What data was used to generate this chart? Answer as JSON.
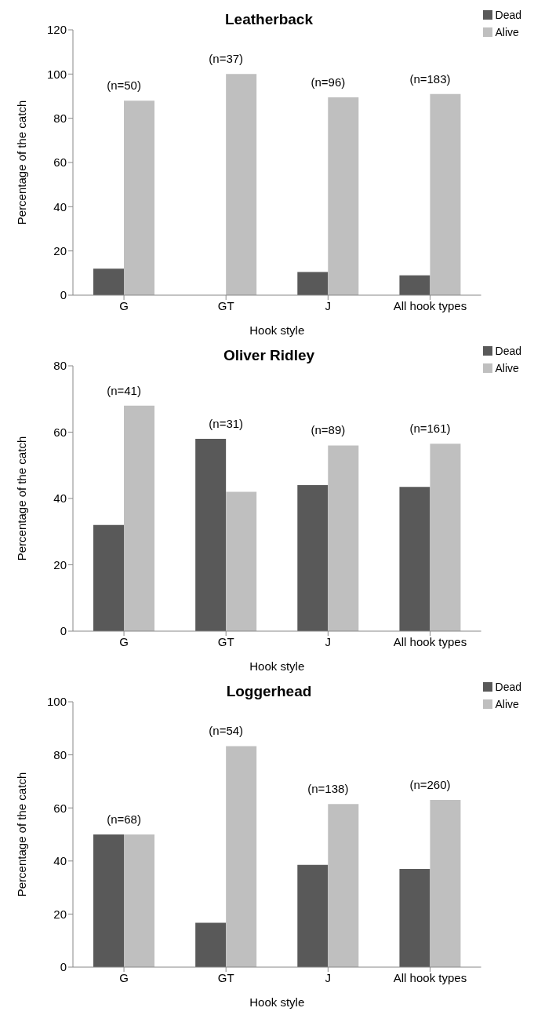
{
  "chart_data": [
    {
      "type": "bar",
      "title": "Leatherback",
      "xlabel": "Hook style",
      "ylabel": "Percentage of the catch",
      "categories": [
        "G",
        "GT",
        "J",
        "All hook types"
      ],
      "series": [
        {
          "name": "Dead",
          "color": "#595959",
          "values": [
            12,
            0,
            10.5,
            9
          ]
        },
        {
          "name": "Alive",
          "color": "#bfbfbf",
          "values": [
            88,
            100,
            89.5,
            91
          ]
        }
      ],
      "ylim": [
        0,
        120
      ],
      "yticks": [
        0,
        20,
        40,
        60,
        80,
        100,
        120
      ],
      "grid": false,
      "legend": "top right",
      "annotations": [
        "(n=50)",
        "(n=37)",
        "(n=96)",
        "(n=183)"
      ]
    },
    {
      "type": "bar",
      "title": "Oliver Ridley",
      "xlabel": "Hook style",
      "ylabel": "Percentage of the catch",
      "categories": [
        "G",
        "GT",
        "J",
        "All hook types"
      ],
      "series": [
        {
          "name": "Dead",
          "color": "#595959",
          "values": [
            32,
            58,
            44,
            43.5
          ]
        },
        {
          "name": "Alive",
          "color": "#bfbfbf",
          "values": [
            68,
            42,
            56,
            56.5
          ]
        }
      ],
      "ylim": [
        0,
        80
      ],
      "yticks": [
        0,
        20,
        40,
        60,
        80
      ],
      "grid": false,
      "legend": "top right",
      "annotations": [
        "(n=41)",
        "(n=31)",
        "(n=89)",
        "(n=161)"
      ]
    },
    {
      "type": "bar",
      "title": "Loggerhead",
      "xlabel": "Hook style",
      "ylabel": "Percentage of the catch",
      "categories": [
        "G",
        "GT",
        "J",
        "All hook types"
      ],
      "series": [
        {
          "name": "Dead",
          "color": "#595959",
          "values": [
            50,
            16.7,
            38.5,
            37
          ]
        },
        {
          "name": "Alive",
          "color": "#bfbfbf",
          "values": [
            50,
            83.3,
            61.5,
            63
          ]
        }
      ],
      "ylim": [
        0,
        100
      ],
      "yticks": [
        0,
        20,
        40,
        60,
        80,
        100
      ],
      "grid": false,
      "legend": "top right",
      "annotations": [
        "(n=68)",
        "(n=54)",
        "(n=138)",
        "(n=260)"
      ]
    }
  ]
}
